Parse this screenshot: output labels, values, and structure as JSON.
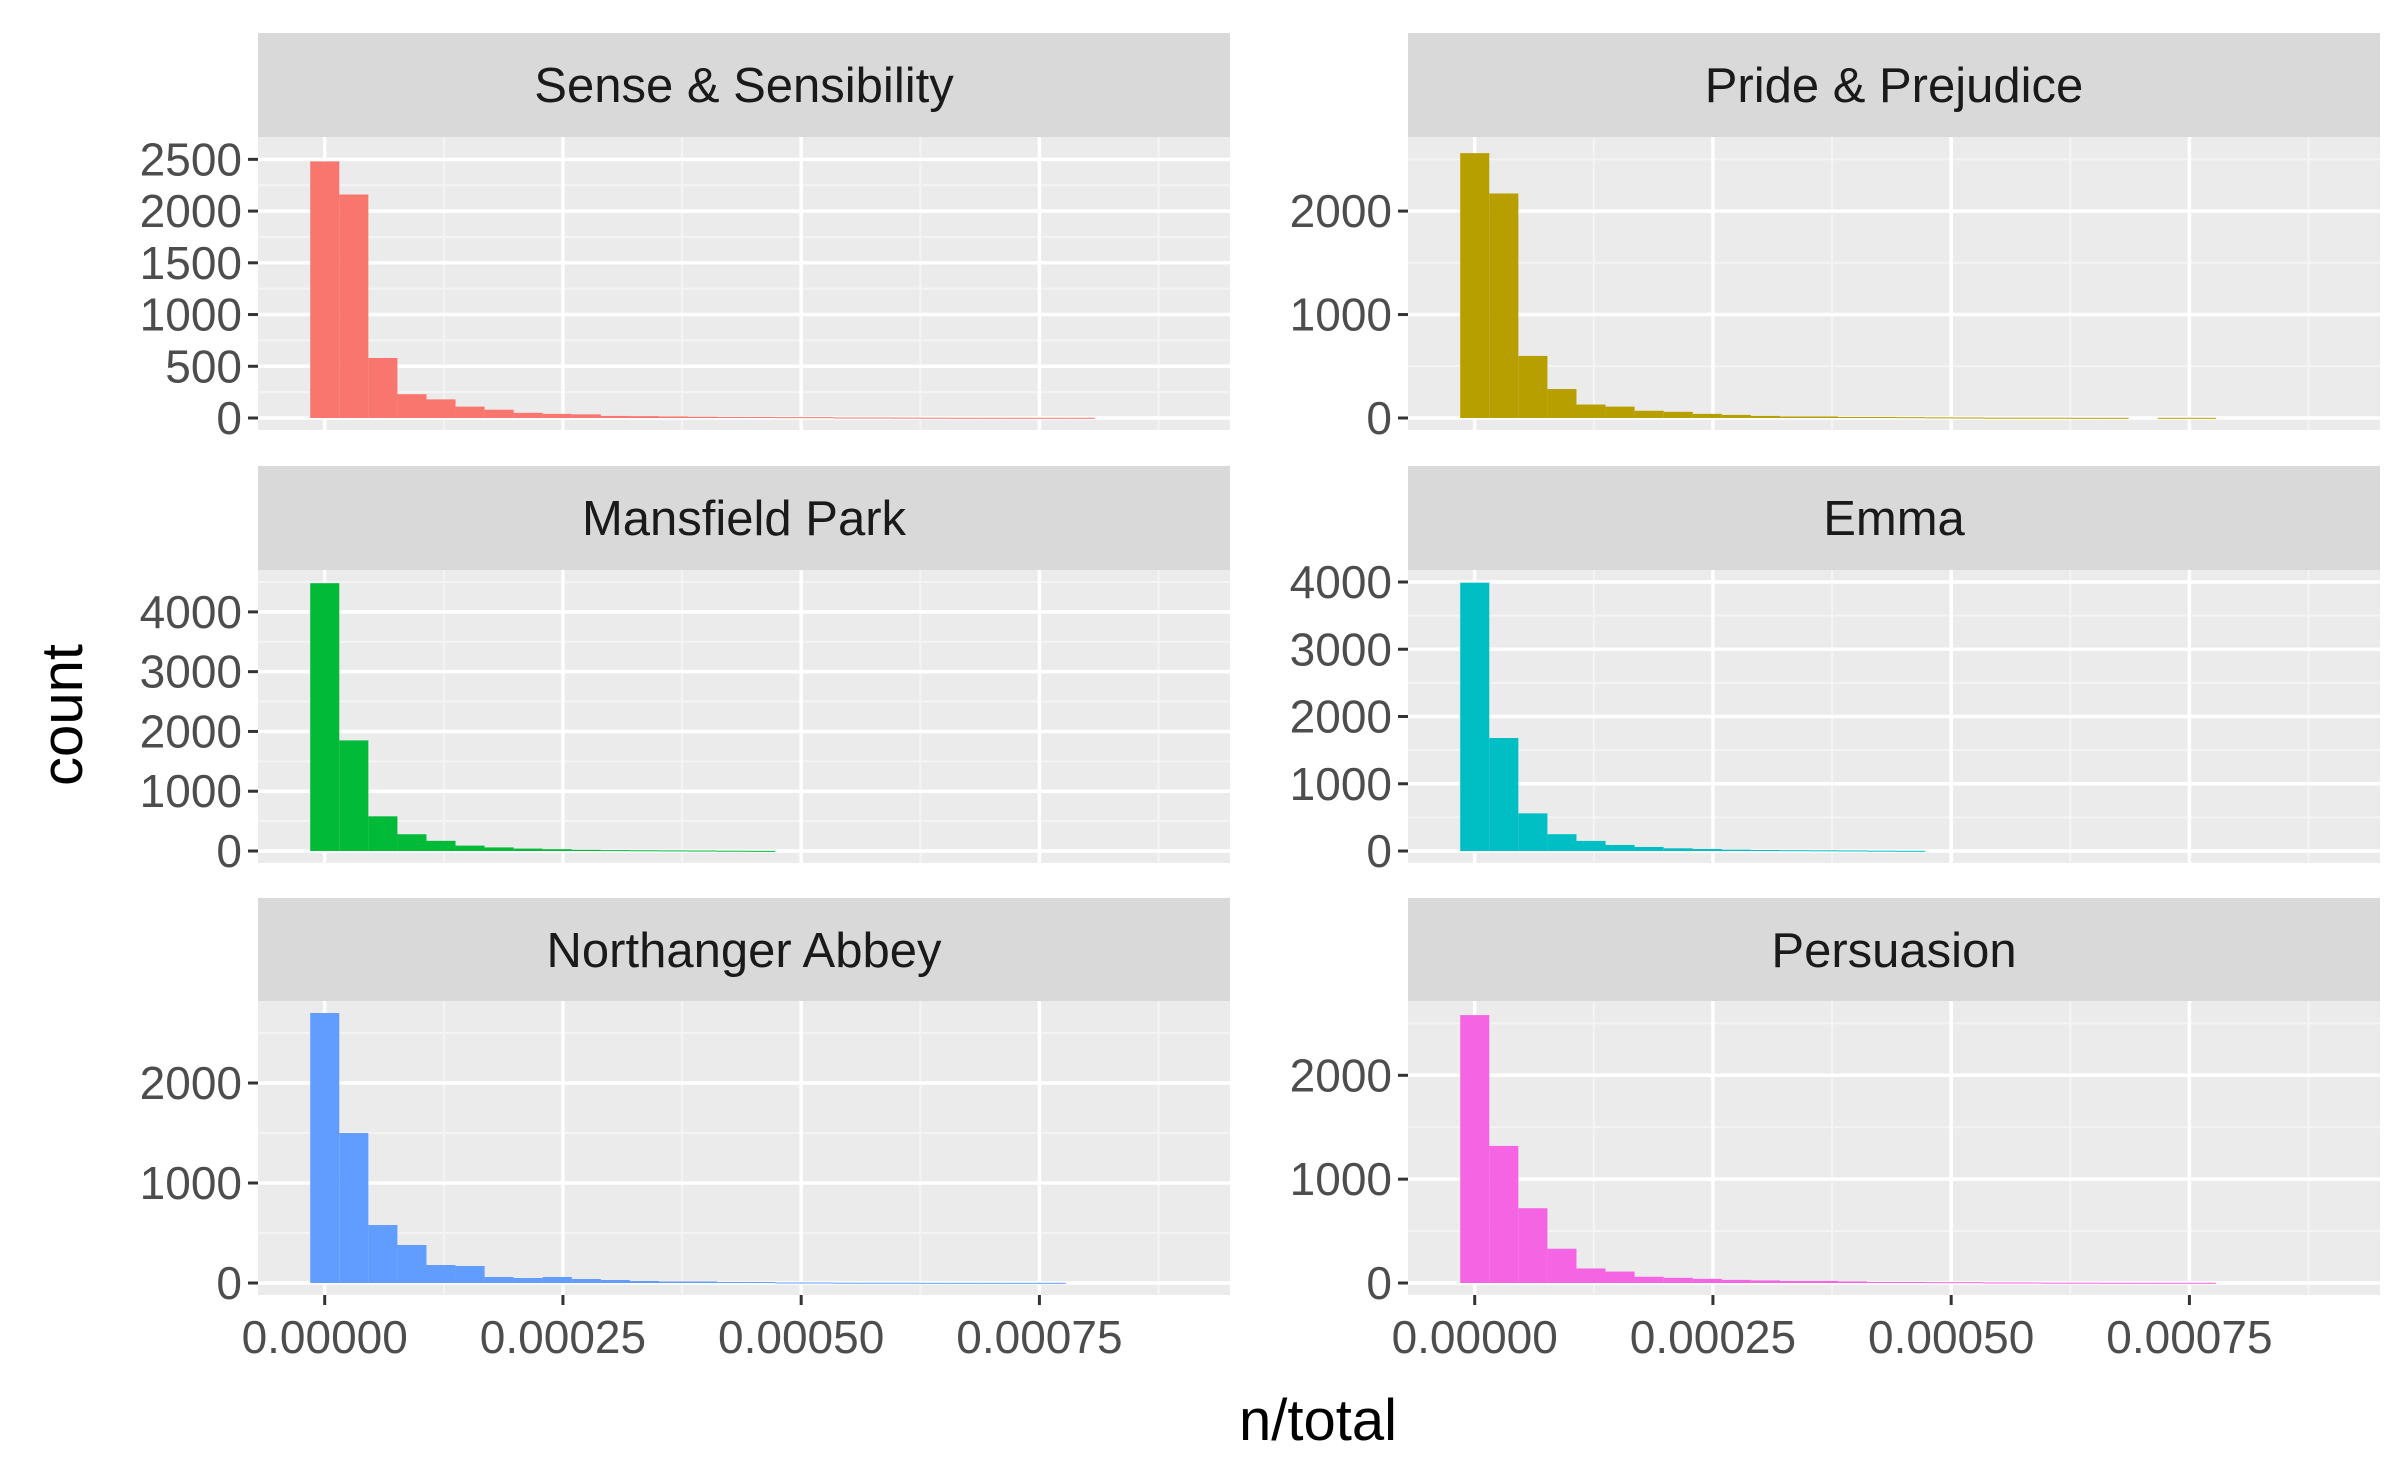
{
  "chart_data": {
    "type": "bar",
    "layout": "facet-wrap 3x2",
    "xlabel": "n/total",
    "ylabel": "count",
    "x_ticks": [
      "0.00000",
      "0.00025",
      "0.00050",
      "0.00075"
    ],
    "x_tick_values": [
      0,
      0.00025,
      0.0005,
      0.00075
    ],
    "xlim": [
      -7e-05,
      0.00095
    ],
    "bin_width": 3.05e-05,
    "bin_start": -1.52e-05,
    "grid": true,
    "legend": "none",
    "panels": [
      {
        "title": "Sense & Sensibility",
        "color": "#F8766D",
        "ylim": [
          0,
          2600
        ],
        "y_ticks": [
          "0",
          "500",
          "1000",
          "1500",
          "2000",
          "2500"
        ],
        "y_tick_values": [
          0,
          500,
          1000,
          1500,
          2000,
          2500
        ],
        "counts": [
          2480,
          2160,
          580,
          230,
          180,
          110,
          80,
          50,
          40,
          35,
          20,
          18,
          15,
          12,
          10,
          10,
          8,
          8,
          5,
          5,
          4,
          3,
          2,
          2,
          2,
          2,
          2,
          0,
          0,
          0
        ]
      },
      {
        "title": "Pride & Prejudice",
        "color": "#B79F00",
        "ylim": [
          0,
          2600
        ],
        "y_ticks": [
          "0",
          "1000",
          "2000"
        ],
        "y_tick_values": [
          0,
          1000,
          2000
        ],
        "counts": [
          2560,
          2170,
          600,
          280,
          130,
          110,
          70,
          60,
          40,
          30,
          20,
          15,
          15,
          10,
          10,
          8,
          6,
          5,
          3,
          3,
          3,
          2,
          2,
          0,
          2,
          2,
          0,
          0,
          0,
          0
        ]
      },
      {
        "title": "Mansfield Park",
        "color": "#00BA38",
        "ylim": [
          0,
          4500
        ],
        "y_ticks": [
          "0",
          "1000",
          "2000",
          "3000",
          "4000"
        ],
        "y_tick_values": [
          0,
          1000,
          2000,
          3000,
          4000
        ],
        "counts": [
          4480,
          1850,
          580,
          280,
          170,
          90,
          60,
          40,
          30,
          20,
          15,
          12,
          10,
          8,
          5,
          3,
          0,
          0,
          0,
          0,
          0,
          0,
          0,
          0,
          0,
          0,
          0,
          0,
          0,
          0
        ]
      },
      {
        "title": "Emma",
        "color": "#00BFC4",
        "ylim": [
          0,
          4000
        ],
        "y_ticks": [
          "0",
          "1000",
          "2000",
          "3000",
          "4000"
        ],
        "y_tick_values": [
          0,
          1000,
          2000,
          3000,
          4000
        ],
        "counts": [
          3990,
          1680,
          560,
          250,
          150,
          90,
          60,
          40,
          30,
          20,
          15,
          12,
          10,
          8,
          5,
          3,
          0,
          0,
          0,
          0,
          0,
          0,
          0,
          0,
          0,
          0,
          0,
          0,
          0,
          0
        ]
      },
      {
        "title": "Northanger Abbey",
        "color": "#619CFF",
        "ylim": [
          0,
          2700
        ],
        "y_ticks": [
          "0",
          "1000",
          "2000"
        ],
        "y_tick_values": [
          0,
          1000,
          2000
        ],
        "counts": [
          2700,
          1500,
          580,
          380,
          180,
          170,
          60,
          50,
          60,
          40,
          30,
          20,
          15,
          15,
          10,
          10,
          5,
          5,
          3,
          3,
          3,
          2,
          2,
          2,
          2,
          2,
          0,
          0,
          0,
          0
        ]
      },
      {
        "title": "Persuasion",
        "color": "#F564E3",
        "ylim": [
          0,
          2600
        ],
        "y_ticks": [
          "0",
          "1000",
          "2000"
        ],
        "y_tick_values": [
          0,
          1000,
          2000
        ],
        "counts": [
          2580,
          1320,
          720,
          330,
          140,
          110,
          60,
          50,
          40,
          30,
          25,
          20,
          20,
          15,
          10,
          10,
          8,
          8,
          5,
          5,
          3,
          3,
          2,
          2,
          2,
          2,
          0,
          0,
          0,
          0
        ]
      }
    ]
  }
}
